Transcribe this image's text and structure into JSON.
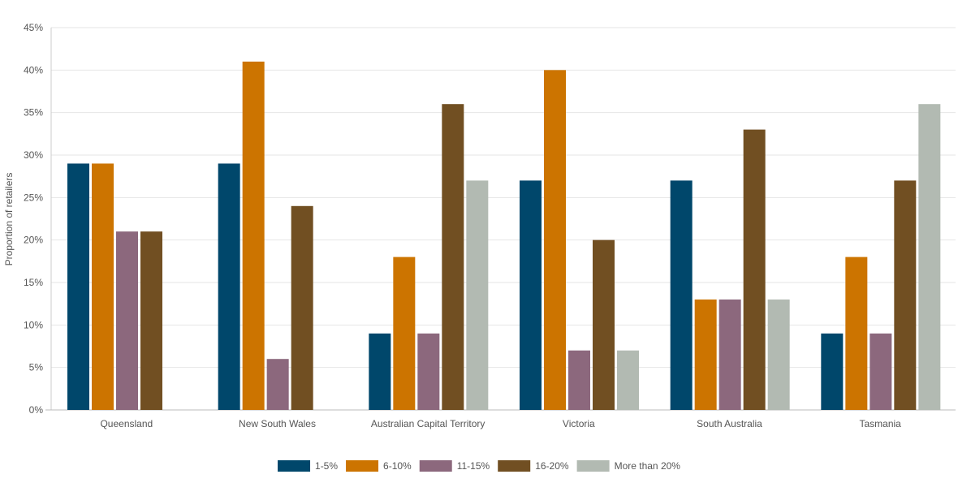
{
  "chart_data": {
    "type": "bar",
    "title": "",
    "xlabel": "",
    "ylabel": "Proportion of retailers",
    "ylim": [
      0,
      45
    ],
    "yticks": [
      "0%",
      "5%",
      "10%",
      "15%",
      "20%",
      "25%",
      "30%",
      "35%",
      "40%",
      "45%"
    ],
    "ytick_values": [
      0,
      5,
      10,
      15,
      20,
      25,
      30,
      35,
      40,
      45
    ],
    "grid": true,
    "legend_position": "bottom-center",
    "categories": [
      "Queensland",
      "New South Wales",
      "Australian Capital Territory",
      "Victoria",
      "South Australia",
      "Tasmania"
    ],
    "series": [
      {
        "name": "1-5%",
        "color": "#00476b",
        "values": [
          29,
          29,
          9,
          27,
          27,
          9
        ]
      },
      {
        "name": "6-10%",
        "color": "#cc7400",
        "values": [
          29,
          41,
          18,
          40,
          13,
          18
        ]
      },
      {
        "name": "11-15%",
        "color": "#8c687d",
        "values": [
          21,
          6,
          9,
          7,
          13,
          9
        ]
      },
      {
        "name": "16-20%",
        "color": "#714f22",
        "values": [
          21,
          24,
          36,
          20,
          33,
          27
        ]
      },
      {
        "name": "More than 20%",
        "color": "#b2bab2",
        "values": [
          0,
          0,
          27,
          7,
          13,
          36
        ]
      }
    ]
  }
}
